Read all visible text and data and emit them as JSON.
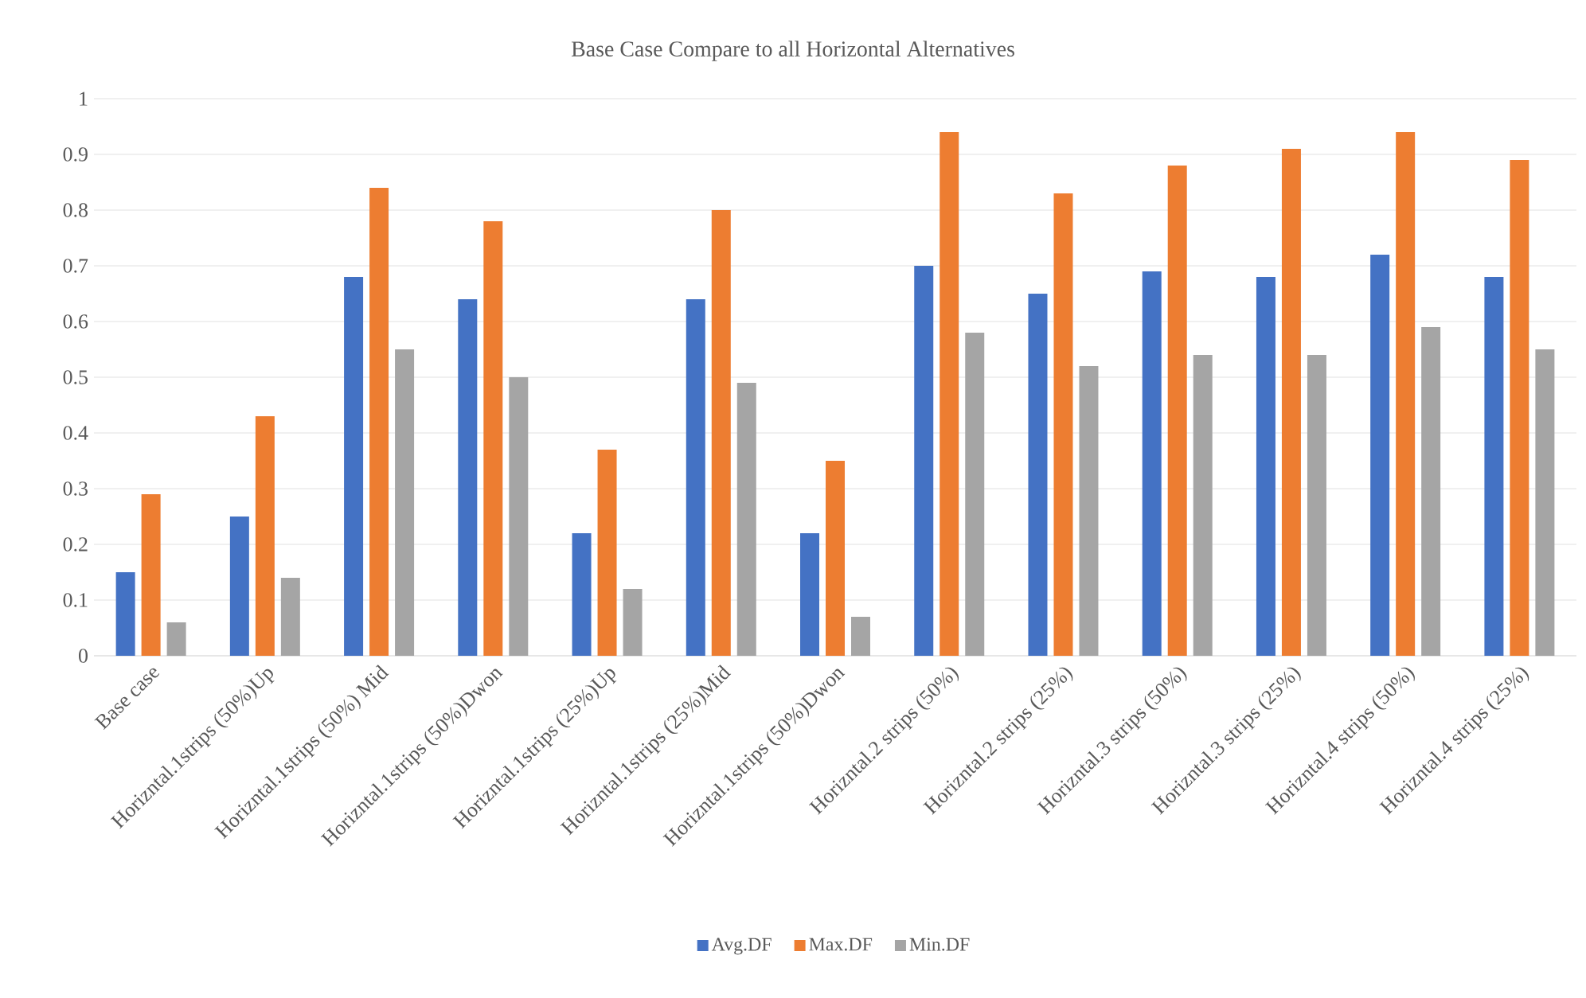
{
  "chart_data": {
    "type": "bar",
    "title": "Base Case Compare to all Horizontal Alternatives",
    "categories": [
      "Base case",
      "Horizntal.1strips (50%)Up",
      "Horizntal.1strips (50%) Mid",
      "Horizntal.1strips (50%)Dwon",
      "Horizntal.1strips (25%)Up",
      "Horizntal.1strips (25%)Mid",
      "Horizntal.1strips (50%)Dwon",
      "Horizntal.2 strips (50%)",
      "Horizntal.2 strips (25%)",
      "Horizntal.3 strips (50%)",
      "Horizntal.3 strips (25%)",
      "Horizntal.4 strips (50%)",
      "Horizntal.4 strips (25%)"
    ],
    "series": [
      {
        "name": "Avg.DF",
        "color": "#4472c4",
        "values": [
          0.15,
          0.25,
          0.68,
          0.64,
          0.22,
          0.64,
          0.22,
          0.7,
          0.65,
          0.69,
          0.68,
          0.72,
          0.68
        ]
      },
      {
        "name": "Max.DF",
        "color": "#ed7d31",
        "values": [
          0.29,
          0.43,
          0.84,
          0.78,
          0.37,
          0.8,
          0.35,
          0.94,
          0.83,
          0.88,
          0.91,
          0.94,
          0.89
        ]
      },
      {
        "name": "Min.DF",
        "color": "#a5a5a5",
        "values": [
          0.06,
          0.14,
          0.55,
          0.5,
          0.12,
          0.49,
          0.07,
          0.58,
          0.52,
          0.54,
          0.54,
          0.59,
          0.55
        ]
      }
    ],
    "ylim": [
      0,
      1
    ],
    "yticks": [
      0,
      0.1,
      0.2,
      0.3,
      0.4,
      0.5,
      0.6,
      0.7,
      0.8,
      0.9,
      1
    ],
    "grid": "y",
    "legend": "bottom"
  }
}
